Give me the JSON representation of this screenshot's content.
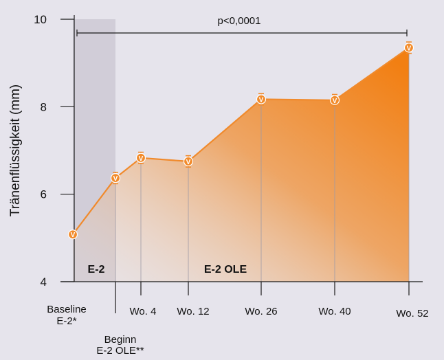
{
  "colors": {
    "background": "#e6e4ec",
    "line": "#f08a2c",
    "marker_fill": "#f28b2b",
    "area_top": "#f27f12",
    "area_fade": "#f0d9c4",
    "shade": "#c9c5d1",
    "axis": "#1a1a1a",
    "vline": "#9e9aa6"
  },
  "chart_data": {
    "type": "area",
    "ylabel": "Tränenflüssigkeit (mm)",
    "ylim": [
      4,
      10
    ],
    "yticks": [
      4,
      6,
      8,
      10
    ],
    "ytick_labels": [
      "4",
      "6",
      "8",
      "10"
    ],
    "categories": [
      {
        "lines": [
          "Baseline",
          "E-2*"
        ]
      },
      {
        "lines": [
          "Beginn",
          "E-2 OLE**"
        ]
      },
      {
        "lines": [
          "Wo. 4"
        ]
      },
      {
        "lines": [
          "Wo. 12"
        ]
      },
      {
        "lines": [
          "Wo. 26"
        ]
      },
      {
        "lines": [
          "Wo. 40"
        ]
      },
      {
        "lines": [
          "Wo. 52"
        ]
      }
    ],
    "values": [
      5.08,
      6.37,
      6.83,
      6.75,
      8.17,
      8.15,
      9.35
    ],
    "error": [
      0,
      0.13,
      0.13,
      0.13,
      0.13,
      0.13,
      0.13
    ],
    "marker_symbol": "V",
    "annotation": "p<0,0001",
    "phase_labels": [
      "E-2",
      "E-2 OLE"
    ],
    "grid": false
  }
}
